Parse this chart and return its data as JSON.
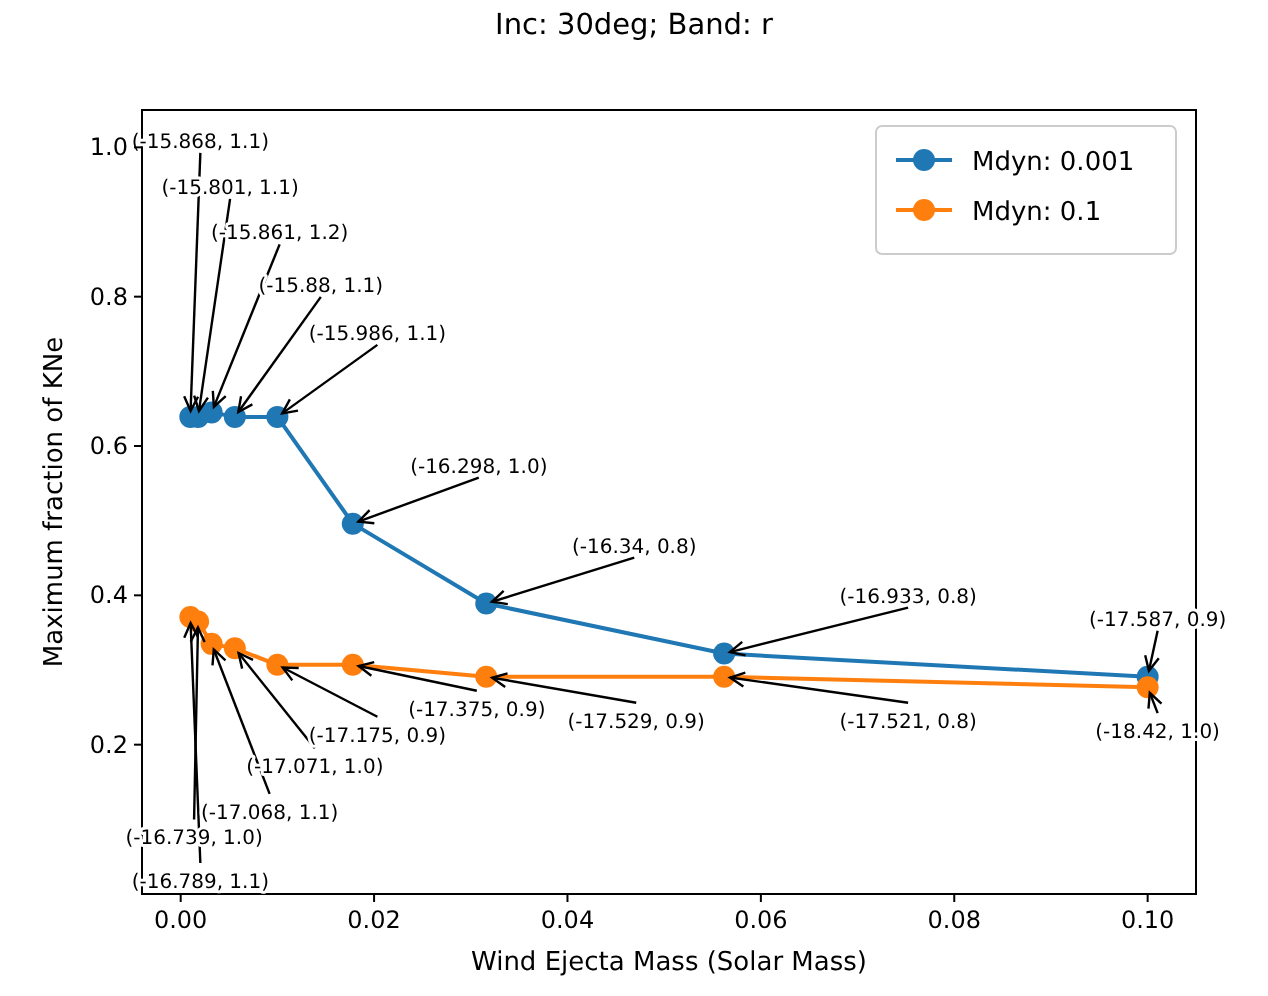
{
  "chart_data": {
    "type": "line",
    "title": "Inc: 30deg; Band: r",
    "xlabel": "Wind Ejecta Mass (Solar Mass)",
    "ylabel": "Maximum fraction of KNe",
    "x": [
      0.001,
      0.0018,
      0.0032,
      0.0056,
      0.01,
      0.0178,
      0.0316,
      0.0562,
      0.1
    ],
    "series": [
      {
        "name": "Mdyn: 0.001",
        "color": "#1f77b4",
        "values": [
          0.639,
          0.639,
          0.645,
          0.639,
          0.639,
          0.496,
          0.389,
          0.322,
          0.291
        ]
      },
      {
        "name": "Mdyn: 0.1",
        "color": "#ff7f0e",
        "values": [
          0.371,
          0.365,
          0.335,
          0.329,
          0.307,
          0.307,
          0.291,
          0.291,
          0.277
        ]
      }
    ],
    "xlim": [
      -0.004,
      0.105
    ],
    "ylim": [
      0,
      1.05
    ],
    "xticks": [
      {
        "value": 0,
        "label": "0.00"
      },
      {
        "value": 0.02,
        "label": "0.02"
      },
      {
        "value": 0.04,
        "label": "0.04"
      },
      {
        "value": 0.06,
        "label": "0.06"
      },
      {
        "value": 0.08,
        "label": "0.08"
      },
      {
        "value": 0.1,
        "label": "0.10"
      }
    ],
    "yticks": [
      {
        "value": 0.2,
        "label": "0.2"
      },
      {
        "value": 0.4,
        "label": "0.4"
      },
      {
        "value": 0.6,
        "label": "0.6"
      },
      {
        "value": 0.8,
        "label": "0.8"
      },
      {
        "value": 1,
        "label": "1.0"
      }
    ],
    "marker": "circle",
    "line_style": "solid",
    "grid": false,
    "legend": "top right",
    "annotations": [
      {
        "text": "(-15.868, 1.1)",
        "x": 0.001,
        "y": 0.639
      },
      {
        "text": "(-15.801, 1.1)",
        "x": 0.0018,
        "y": 0.639
      },
      {
        "text": "(-15.861, 1.2)",
        "x": 0.0032,
        "y": 0.645
      },
      {
        "text": "(-15.88, 1.1)",
        "x": 0.0056,
        "y": 0.639
      },
      {
        "text": "(-15.986, 1.1)",
        "x": 0.01,
        "y": 0.639
      },
      {
        "text": "(-16.298, 1.0)",
        "x": 0.0178,
        "y": 0.496
      },
      {
        "text": "(-16.34, 0.8)",
        "x": 0.0316,
        "y": 0.389
      },
      {
        "text": "(-16.933, 0.8)",
        "x": 0.0562,
        "y": 0.322
      },
      {
        "text": "(-17.587, 0.9)",
        "x": 0.1,
        "y": 0.291
      },
      {
        "text": "(-16.789, 1.1)",
        "x": 0.001,
        "y": 0.371
      },
      {
        "text": "(-16.739, 1.0)",
        "x": 0.0018,
        "y": 0.365
      },
      {
        "text": "(-17.068, 1.1)",
        "x": 0.0032,
        "y": 0.335
      },
      {
        "text": "(-17.071, 1.0)",
        "x": 0.0056,
        "y": 0.329
      },
      {
        "text": "(-17.175, 0.9)",
        "x": 0.01,
        "y": 0.307
      },
      {
        "text": "(-17.375, 0.9)",
        "x": 0.0178,
        "y": 0.307
      },
      {
        "text": "(-17.529, 0.9)",
        "x": 0.0316,
        "y": 0.291
      },
      {
        "text": "(-17.521, 0.8)",
        "x": 0.0562,
        "y": 0.291
      },
      {
        "text": "(-18.42, 1.0)",
        "x": 0.1,
        "y": 0.277
      }
    ]
  }
}
